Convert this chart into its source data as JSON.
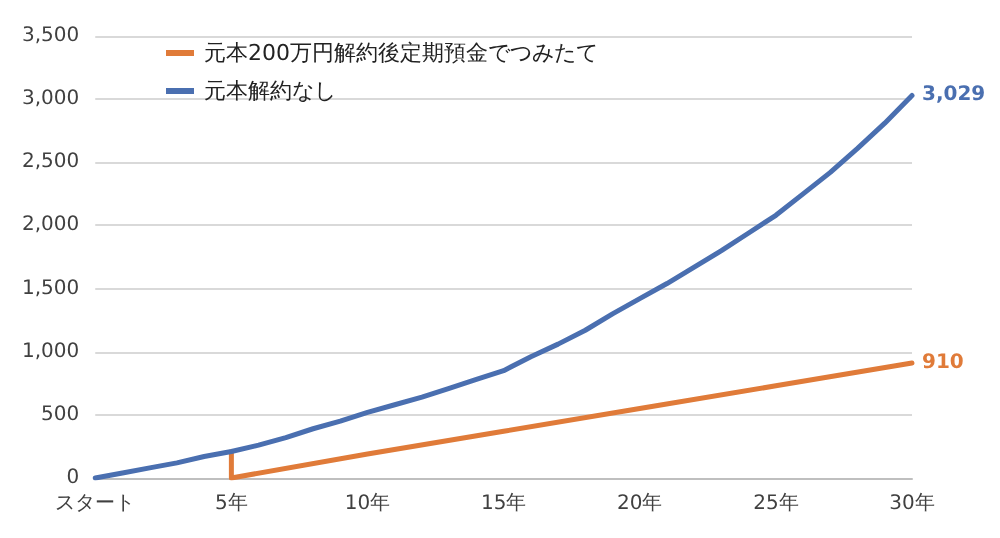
{
  "chart_data": {
    "type": "line",
    "legend": "top left",
    "grid": "y",
    "marker": "none",
    "line_style": "solid",
    "xlim": [
      0,
      30
    ],
    "xticks": [
      {
        "value": 0,
        "label": "スタート"
      },
      {
        "value": 5,
        "label": "5年"
      },
      {
        "value": 10,
        "label": "10年"
      },
      {
        "value": 15,
        "label": "15年"
      },
      {
        "value": 20,
        "label": "20年"
      },
      {
        "value": 25,
        "label": "25年"
      },
      {
        "value": 30,
        "label": "30年"
      }
    ],
    "ylim": [
      0,
      3500
    ],
    "yticks": [
      {
        "value": 0,
        "label": "0"
      },
      {
        "value": 500,
        "label": "500"
      },
      {
        "value": 1000,
        "label": "1,000"
      },
      {
        "value": 1500,
        "label": "1,500"
      },
      {
        "value": 2000,
        "label": "2,000"
      },
      {
        "value": 2500,
        "label": "2,500"
      },
      {
        "value": 3000,
        "label": "3,000"
      },
      {
        "value": 3500,
        "label": "3,500"
      }
    ],
    "series": [
      {
        "name": "元本200万円解約後定期預金でつみたて",
        "color": "#e07b39",
        "x": [
          5,
          5,
          10,
          15,
          20,
          25,
          30
        ],
        "values": [
          210,
          0,
          190,
          370,
          550,
          730,
          910
        ],
        "value_labels": [
          null,
          null,
          null,
          null,
          null,
          null,
          "910"
        ]
      },
      {
        "name": "元本解約なし",
        "color": "#4a6fb0",
        "x": [
          0,
          1,
          2,
          3,
          4,
          5,
          6,
          7,
          8,
          9,
          10,
          11,
          12,
          13,
          14,
          15,
          16,
          17,
          18,
          19,
          20,
          21,
          22,
          23,
          24,
          25,
          26,
          27,
          28,
          29,
          30
        ],
        "values": [
          0,
          40,
          80,
          120,
          170,
          210,
          260,
          320,
          390,
          450,
          520,
          580,
          640,
          710,
          780,
          850,
          960,
          1060,
          1170,
          1300,
          1420,
          1540,
          1670,
          1800,
          1940,
          2080,
          2250,
          2420,
          2610,
          2810,
          3029
        ],
        "value_labels": [
          null,
          null,
          null,
          null,
          null,
          null,
          null,
          null,
          null,
          null,
          null,
          null,
          null,
          null,
          null,
          null,
          null,
          null,
          null,
          null,
          null,
          null,
          null,
          null,
          null,
          null,
          null,
          null,
          null,
          null,
          "3,029"
        ]
      }
    ]
  }
}
